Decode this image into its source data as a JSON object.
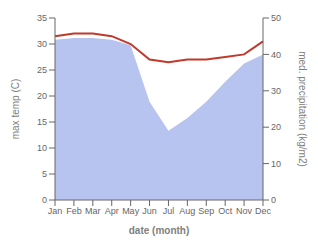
{
  "chart_data": {
    "type": "line",
    "categories": [
      "Jan",
      "Feb",
      "Mar",
      "Apr",
      "May",
      "Jun",
      "Jul",
      "Aug",
      "Sep",
      "Oct",
      "Nov",
      "Dec"
    ],
    "series": [
      {
        "type": "area",
        "axis": "y2",
        "color": "#b8c4f0",
        "values": [
          44.0,
          44.5,
          44.5,
          44.0,
          42.5,
          27.0,
          19.0,
          22.5,
          27.0,
          32.5,
          37.5,
          40.0
        ]
      },
      {
        "type": "line",
        "color": "#c0392b",
        "values": [
          31.5,
          32.0,
          32.0,
          31.5,
          30.0,
          27.0,
          26.5,
          27.0,
          27.0,
          27.5,
          28.0,
          30.5
        ]
      }
    ],
    "xlabel": "date (month)",
    "ylabel": "max temp (C)",
    "y2label": "med. precipitation (kg/m2)",
    "ylim": [
      0,
      35
    ],
    "yticks": [
      0,
      5,
      10,
      15,
      20,
      25,
      30,
      35
    ],
    "y2lim": [
      0,
      50
    ],
    "y2ticks": [
      0,
      10,
      20,
      30,
      40,
      50
    ],
    "grid": false
  }
}
